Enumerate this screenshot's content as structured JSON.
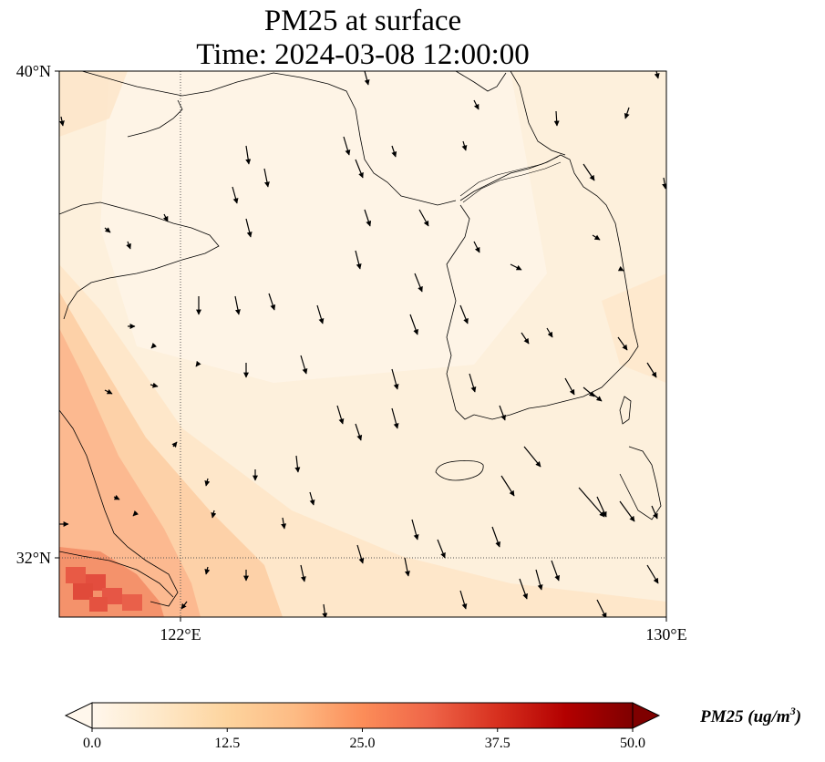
{
  "title": {
    "line1": "PM25 at surface",
    "line2": "Time: 2024-03-08 12:00:00"
  },
  "axes": {
    "lat_labels": [
      "40°N",
      "32°N"
    ],
    "lon_labels": [
      "122°E",
      "130°E"
    ],
    "lat_range": [
      31,
      40
    ],
    "lon_range": [
      120,
      130
    ],
    "gridlines": [
      {
        "lon": 122
      },
      {
        "lat": 32
      }
    ]
  },
  "colorbar": {
    "label_main": "PM25 ",
    "label_unit": "(ug/m",
    "label_sup": "3",
    "label_close": ")",
    "tick_labels": [
      "0.0",
      "12.5",
      "25.0",
      "37.5",
      "50.0"
    ],
    "min": 0,
    "max": 50,
    "extend": "both",
    "colormap": "OrRd",
    "stops": [
      "#fff7ec",
      "#fee8c8",
      "#fdd49e",
      "#fdbb84",
      "#fc8d59",
      "#ef6548",
      "#d7301f",
      "#b30000",
      "#7f0000"
    ]
  },
  "map": {
    "field": "PM25",
    "coastline_color": "#000000",
    "background_value_range": [
      3,
      12
    ],
    "hotspot_region": "southwest corner near 31°N 121°E",
    "wind_arrows": "black quivers mostly pointing south-southeast"
  }
}
